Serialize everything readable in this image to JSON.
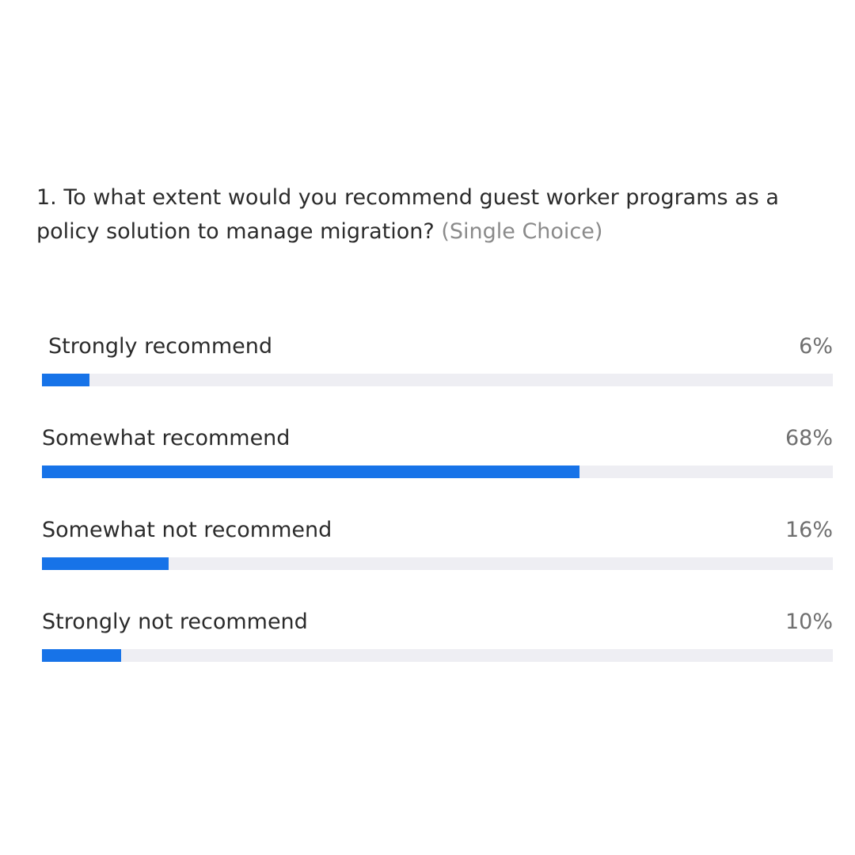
{
  "question": {
    "text": "1. To what extent would you recommend guest worker programs as a policy solution to manage migration?",
    "type": "(Single Choice)"
  },
  "options": [
    {
      "label": "Strongly recommend",
      "percent_text": "6%",
      "percent": 6
    },
    {
      "label": "Somewhat recommend",
      "percent_text": "68%",
      "percent": 68
    },
    {
      "label": "Somewhat not recommend",
      "percent_text": "16%",
      "percent": 16
    },
    {
      "label": "Strongly not recommend",
      "percent_text": "10%",
      "percent": 10
    }
  ],
  "colors": {
    "bar_fill": "#1773e8",
    "bar_track": "#eeeef3",
    "text": "#2b2b2b",
    "muted": "#8a8a8a"
  }
}
